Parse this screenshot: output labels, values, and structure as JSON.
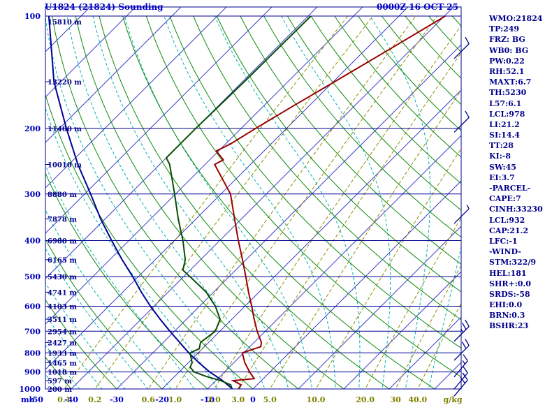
{
  "header": {
    "title": "U1824 (21824) Sounding",
    "datetime": "0000Z 16 OCT 25"
  },
  "axes": {
    "pressure_unit": "mb",
    "pressure_ticks": [
      100,
      200,
      300,
      400,
      500,
      600,
      700,
      800,
      900,
      1000
    ],
    "height_labels": [
      {
        "p": 100,
        "text": "15810 m"
      },
      {
        "p": 150,
        "text": "13220 m"
      },
      {
        "p": 200,
        "text": "11400 m"
      },
      {
        "p": 250,
        "text": "10010 m"
      },
      {
        "p": 300,
        "text": "8880 m"
      },
      {
        "p": 350,
        "text": "7878 m"
      },
      {
        "p": 400,
        "text": "6980 m"
      },
      {
        "p": 450,
        "text": "6165 m"
      },
      {
        "p": 500,
        "text": "5430 m"
      },
      {
        "p": 550,
        "text": "4741 m"
      },
      {
        "p": 600,
        "text": "4103 m"
      },
      {
        "p": 650,
        "text": "3511 m"
      },
      {
        "p": 700,
        "text": "2954 m"
      },
      {
        "p": 750,
        "text": "2427 m"
      },
      {
        "p": 800,
        "text": "1933 m"
      },
      {
        "p": 850,
        "text": "1465 m"
      },
      {
        "p": 900,
        "text": "1018 m"
      },
      {
        "p": 950,
        "text": "597 m"
      },
      {
        "p": 1000,
        "text": "200 m"
      }
    ],
    "temp_ticks_c": [
      -50,
      -40,
      -30,
      -20,
      -10,
      0
    ],
    "mixing_ratio_ticks": [
      "0.1",
      "0.2",
      "0.6",
      "1.0",
      "2.0",
      "3.0",
      "5.0",
      "10.0",
      "20.0",
      "30",
      "40.0"
    ],
    "mixing_ratio_values": [
      0.1,
      0.2,
      0.6,
      1.0,
      2.0,
      3.0,
      5.0,
      10.0,
      20.0,
      30,
      40
    ],
    "mixing_unit": "g/kg"
  },
  "panel": {
    "lines": [
      "WMO:21824",
      "TP:249",
      "FRZ: BG",
      "WB0: BG",
      "PW:0.22",
      "RH:52.1",
      "MAXT:6.7",
      "TH:5230",
      "L57:6.1",
      "LCL:978",
      "LI:21.2",
      "SI:14.4",
      "TT:28",
      "KI:-8",
      "SW:45",
      "EI:3.7",
      "-PARCEL-",
      "CAPE:7",
      "CINH:33230",
      "LCL:932",
      "CAP:21.2",
      "LFC:-1",
      "-WIND-",
      "STM:322/9",
      "HEL:181",
      "SHR+:0.0",
      "SRDS:-58",
      "EHI:0.0",
      "BRN:0.3",
      "BSHR:23"
    ]
  },
  "colors": {
    "pressure_line": "#000090",
    "isotherm": "#4040c8",
    "dry_adiabat": "#0c8a0c",
    "moist_adiabat": "#00b2b2",
    "mixing_ratio": "#8f8f00",
    "temperature": "#990000",
    "dewpoint": "#064d06",
    "wetbulb": "#000099",
    "barb": "#00008b"
  },
  "chart_data": {
    "type": "line",
    "subtype": "skew-t-log-p-sounding",
    "title": "U1824 (21824) Sounding",
    "valid_time": "0000Z 16 OCT 25",
    "pressure_axis": {
      "unit": "mb",
      "scale": "log",
      "range": [
        100,
        1050
      ],
      "gridlines": [
        100,
        200,
        300,
        400,
        500,
        600,
        700,
        800,
        900,
        1000
      ]
    },
    "temperature_axis": {
      "unit": "C",
      "ticks": [
        -50,
        -40,
        -30,
        -20,
        -10,
        0
      ],
      "skew": "45deg"
    },
    "grid": {
      "isotherms_c": {
        "from": -120,
        "to": 40,
        "step": 10
      },
      "dry_adiabats_k": {
        "from": 213.15,
        "to": 473.15,
        "step": 10
      },
      "moist_adiabats_c": {
        "from": -60,
        "to": 40,
        "step": 5
      },
      "mixing_ratio_g_kg": [
        0.1,
        0.2,
        0.6,
        1,
        2,
        3,
        5,
        10,
        20,
        30,
        40
      ]
    },
    "series": [
      {
        "name": "temperature",
        "units": "mb,C",
        "points": [
          [
            1000,
            -3.2
          ],
          [
            975,
            -3.5
          ],
          [
            950,
            -6.2
          ],
          [
            938,
            -2.0
          ],
          [
            900,
            -4.5
          ],
          [
            850,
            -7.6
          ],
          [
            800,
            -10.3
          ],
          [
            770,
            -7.6
          ],
          [
            750,
            -8.4
          ],
          [
            700,
            -11.8
          ],
          [
            650,
            -15.1
          ],
          [
            600,
            -18.5
          ],
          [
            550,
            -22.3
          ],
          [
            500,
            -26.3
          ],
          [
            450,
            -30.8
          ],
          [
            400,
            -35.9
          ],
          [
            350,
            -41.5
          ],
          [
            300,
            -47.9
          ],
          [
            250,
            -57.9
          ],
          [
            243,
            -57.0
          ],
          [
            230,
            -60.5
          ],
          [
            220,
            -58.9
          ],
          [
            200,
            -56.8
          ],
          [
            175,
            -53.6
          ],
          [
            150,
            -49.7
          ],
          [
            125,
            -45.2
          ],
          [
            100,
            -39.8
          ]
        ]
      },
      {
        "name": "dewpoint",
        "units": "mb,C",
        "points": [
          [
            1000,
            -4.6
          ],
          [
            975,
            -5.8
          ],
          [
            950,
            -8.9
          ],
          [
            925,
            -13.1
          ],
          [
            900,
            -16.7
          ],
          [
            875,
            -18.6
          ],
          [
            850,
            -19.2
          ],
          [
            800,
            -21.8
          ],
          [
            780,
            -20.7
          ],
          [
            750,
            -21.8
          ],
          [
            700,
            -21.0
          ],
          [
            650,
            -22.6
          ],
          [
            600,
            -26.5
          ],
          [
            550,
            -31.6
          ],
          [
            500,
            -38.6
          ],
          [
            480,
            -41.6
          ],
          [
            450,
            -43.4
          ],
          [
            400,
            -48.1
          ],
          [
            350,
            -53.9
          ],
          [
            300,
            -60.2
          ],
          [
            250,
            -67.8
          ],
          [
            240,
            -70.0
          ],
          [
            200,
            -70.0
          ],
          [
            150,
            -69.6
          ],
          [
            100,
            -69.4
          ]
        ]
      },
      {
        "name": "wetbulb",
        "units": "mb,C",
        "points": [
          [
            1000,
            -4.5
          ],
          [
            950,
            -8.5
          ],
          [
            900,
            -13.3
          ],
          [
            850,
            -17.7
          ],
          [
            800,
            -22.1
          ],
          [
            750,
            -26.4
          ],
          [
            700,
            -31.0
          ],
          [
            650,
            -35.8
          ],
          [
            600,
            -40.8
          ],
          [
            550,
            -45.9
          ],
          [
            500,
            -51.2
          ],
          [
            450,
            -57.3
          ],
          [
            400,
            -63.8
          ],
          [
            350,
            -71.0
          ],
          [
            300,
            -78.7
          ],
          [
            250,
            -88.0
          ],
          [
            200,
            -98.5
          ],
          [
            150,
            -111.5
          ],
          [
            100,
            -127.1
          ]
        ]
      }
    ],
    "wind_barbs": [
      {
        "p": 130,
        "dir": 45,
        "spd": 10
      },
      {
        "p": 205,
        "dir": 45,
        "spd": 10
      },
      {
        "p": 360,
        "dir": 45,
        "spd": 5
      },
      {
        "p": 745,
        "dir": 45,
        "spd": 25
      },
      {
        "p": 838,
        "dir": 45,
        "spd": 20
      },
      {
        "p": 928,
        "dir": 40,
        "spd": 15
      },
      {
        "p": 1000,
        "dir": 40,
        "spd": 15
      },
      {
        "p": 1045,
        "dir": 40,
        "spd": 20
      }
    ],
    "legend": "none"
  }
}
